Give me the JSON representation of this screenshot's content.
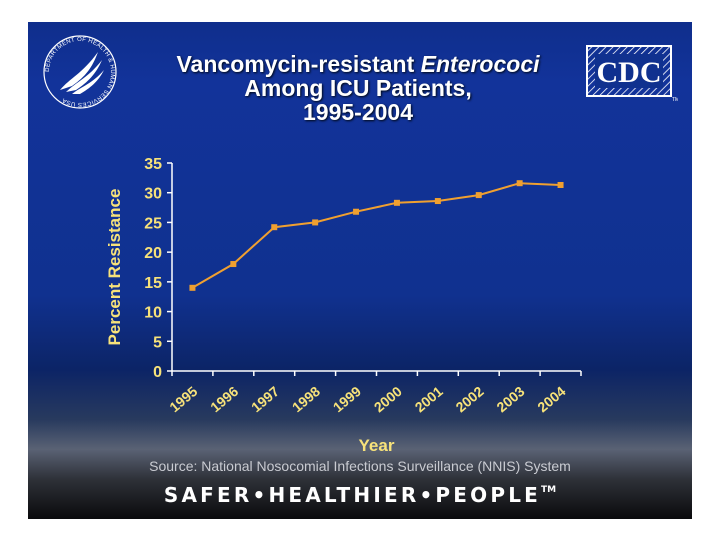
{
  "slide": {
    "title_part1": "Vancomycin-resistant ",
    "title_italic": "Enterococi",
    "title_line2": "Among ICU Patients,",
    "title_line3": "1995-2004",
    "source": "Source: National Nosocomial Infections Surveillance (NNIS) System",
    "tagline": "SAFER•HEALTHIER•PEOPLE",
    "trademark": "TM",
    "cdc_logo_text": "CDC",
    "hhs_seal_text": "DEPARTMENT OF HEALTH & HUMAN SERVICES USA"
  },
  "colors": {
    "background": "#10318f",
    "series": "#f0a030",
    "axis_text": "#f7e27a",
    "axis_line": "#ffffff"
  },
  "chart_data": {
    "type": "line",
    "title": "Vancomycin-resistant Enterococi Among ICU Patients, 1995-2004",
    "xlabel": "Year",
    "ylabel": "Percent Resistance",
    "categories": [
      "1995",
      "1996",
      "1997",
      "1998",
      "1999",
      "2000",
      "2001",
      "2002",
      "2003",
      "2004"
    ],
    "values": [
      14.0,
      18.0,
      24.2,
      25.0,
      26.8,
      28.3,
      28.6,
      29.6,
      31.6,
      31.3
    ],
    "yticks": [
      0,
      5,
      10,
      15,
      20,
      25,
      30,
      35
    ],
    "ylim": [
      0,
      35
    ],
    "grid": false,
    "legend": "none"
  }
}
